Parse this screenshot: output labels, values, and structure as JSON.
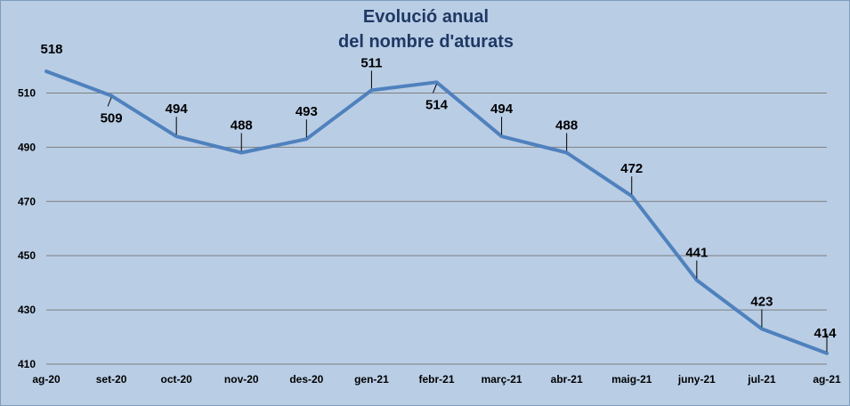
{
  "chart_data": {
    "type": "line",
    "title_lines": [
      "Evolució anual",
      "del nombre d'aturats"
    ],
    "xlabel": "",
    "ylabel": "",
    "categories": [
      "ag-20",
      "set-20",
      "oct-20",
      "nov-20",
      "des-20",
      "gen-21",
      "febr-21",
      "març-21",
      "abr-21",
      "maig-21",
      "juny-21",
      "jul-21",
      "ag-21"
    ],
    "series": [
      {
        "values": [
          518,
          509,
          494,
          488,
          493,
          511,
          514,
          494,
          488,
          472,
          441,
          423,
          414
        ]
      }
    ],
    "y_ticks": [
      410,
      430,
      450,
      470,
      490,
      510
    ],
    "ylim": [
      410,
      520
    ],
    "grid": true,
    "legend": "none",
    "colors": {
      "line": "#4f81bd",
      "background": "#b9cde5",
      "grid": "#7f7f7f",
      "title": "#1f3864",
      "text": "#000000"
    }
  }
}
